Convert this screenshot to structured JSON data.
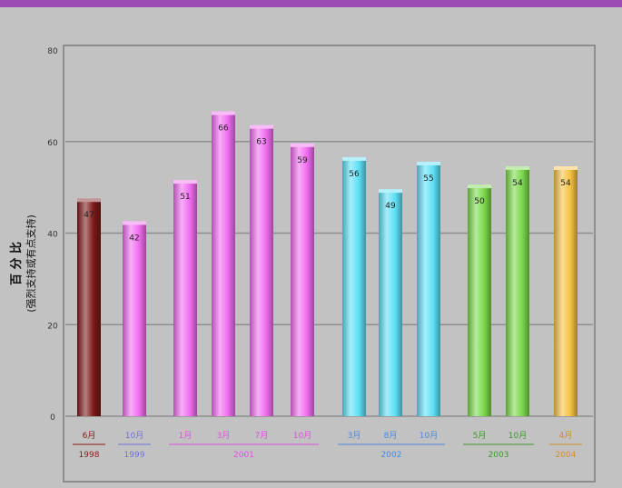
{
  "chart_data": {
    "type": "bar",
    "ylabel": "百 分 比",
    "ylabel_sub": "(强烈支持或有点支持)",
    "ylim": [
      0,
      80
    ],
    "yticks": [
      0,
      20,
      40,
      60,
      80
    ],
    "grid": true,
    "bars": [
      {
        "label": "6月",
        "value": 47,
        "data_label": "47",
        "color": "#7a1818",
        "label_color": "#8a1a1a"
      },
      {
        "label": "10月",
        "value": 42,
        "data_label": "42",
        "color": "#f06cf0",
        "label_color": "#7070d8"
      },
      {
        "label": "1月",
        "value": 51,
        "data_label": "51",
        "color": "#f06cf0",
        "label_color": "#e050e0"
      },
      {
        "label": "3月",
        "value": 66,
        "data_label": "66",
        "color": "#f06cf0",
        "label_color": "#e050e0"
      },
      {
        "label": "7月",
        "value": 63,
        "data_label": "63",
        "color": "#f06cf0",
        "label_color": "#e050e0"
      },
      {
        "label": "10月",
        "value": 59,
        "data_label": "59",
        "color": "#f06cf0",
        "label_color": "#e050e0"
      },
      {
        "label": "3月",
        "value": 56,
        "data_label": "56",
        "color": "#5ce0f5",
        "label_color": "#4a8adf"
      },
      {
        "label": "8月",
        "value": 49,
        "data_label": "49",
        "color": "#5ce0f5",
        "label_color": "#4a8adf"
      },
      {
        "label": "10月",
        "value": 55,
        "data_label": "55",
        "color": "#5ce0f5",
        "label_color": "#4a8adf"
      },
      {
        "label": "5月",
        "value": 50,
        "data_label": "50",
        "color": "#7ad84a",
        "label_color": "#3a9a2a"
      },
      {
        "label": "10月",
        "value": 54,
        "data_label": "54",
        "color": "#7ad84a",
        "label_color": "#3a9a2a"
      },
      {
        "label": "4月",
        "value": 54,
        "data_label": "54",
        "color": "#f5c040",
        "label_color": "#d09020"
      }
    ],
    "year_groups": [
      {
        "year": "1998",
        "first": 0,
        "last": 0,
        "color": "#8a1a1a"
      },
      {
        "year": "1999",
        "first": 1,
        "last": 1,
        "color": "#7070d8"
      },
      {
        "year": "2001",
        "first": 2,
        "last": 5,
        "color": "#e050e0"
      },
      {
        "year": "2002",
        "first": 6,
        "last": 8,
        "color": "#4a8adf"
      },
      {
        "year": "2003",
        "first": 9,
        "last": 10,
        "color": "#3a9a2a"
      },
      {
        "year": "2004",
        "first": 11,
        "last": 11,
        "color": "#d09020"
      }
    ]
  },
  "frame": {
    "top_border_color": "#9a4ab0",
    "background": "#c2c2c2"
  }
}
